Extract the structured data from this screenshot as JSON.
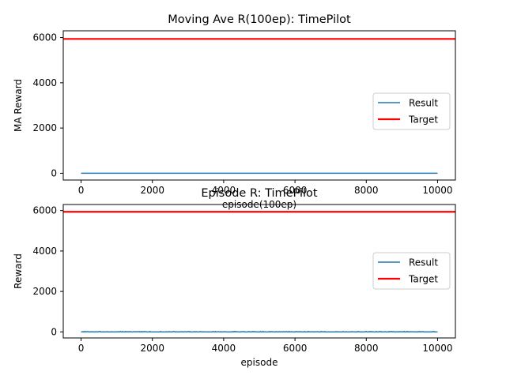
{
  "chart_data": [
    {
      "type": "line",
      "title": "Moving Ave R(100ep): TimePilot",
      "xlabel": "episode(100ep)",
      "ylabel": "MA Reward",
      "xlim": [
        -500,
        10500
      ],
      "ylim": [
        -300,
        6300
      ],
      "xticks": [
        0,
        2000,
        4000,
        6000,
        8000,
        10000
      ],
      "yticks": [
        0,
        2000,
        4000,
        6000
      ],
      "grid": false,
      "legend_position": "center-right",
      "series": [
        {
          "name": "Result",
          "color": "#1f77b4",
          "x": [
            0,
            10000
          ],
          "y": [
            0,
            0
          ]
        },
        {
          "name": "Target",
          "color": "#ff0000",
          "x": [
            -500,
            10500
          ],
          "y": [
            5940,
            5940
          ]
        }
      ]
    },
    {
      "type": "line",
      "title": "Episode R: TimePilot",
      "xlabel": "episode",
      "ylabel": "Reward",
      "xlim": [
        -500,
        10500
      ],
      "ylim": [
        -300,
        6300
      ],
      "xticks": [
        0,
        2000,
        4000,
        6000,
        8000,
        10000
      ],
      "yticks": [
        0,
        2000,
        4000,
        6000
      ],
      "grid": false,
      "legend_position": "center-right",
      "series": [
        {
          "name": "Result",
          "color": "#1f77b4",
          "x": [
            0,
            10000
          ],
          "y": [
            0,
            0
          ],
          "noise": 20
        },
        {
          "name": "Target",
          "color": "#ff0000",
          "x": [
            -500,
            10500
          ],
          "y": [
            5940,
            5940
          ]
        }
      ]
    }
  ]
}
